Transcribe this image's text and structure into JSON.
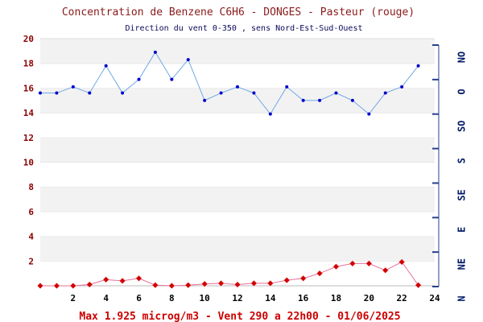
{
  "chart_data": {
    "type": "line",
    "title": "Concentration de Benzene C6H6  -   DONGES - Pasteur (rouge)",
    "subtitle": "Direction du vent 0-350 , sens Nord-Est-Sud-Ouest",
    "footer": "Max 1.925 microg/m3 - Vent 290  a 22h00 - 01/06/2025",
    "xlim": [
      0,
      24
    ],
    "ylim": [
      0,
      20
    ],
    "x_ticks": [
      2,
      4,
      6,
      8,
      10,
      12,
      14,
      16,
      18,
      20,
      22,
      24
    ],
    "y_ticks": [
      2,
      4,
      6,
      8,
      10,
      12,
      14,
      16,
      18,
      20
    ],
    "direction_labels": [
      "NO",
      "O",
      "SO",
      "S",
      "SE",
      "E",
      "NE",
      "N"
    ],
    "grid": "horizontal bands",
    "series": [
      {
        "color": "#6fa8e8",
        "marker_color": "#0000cc",
        "x": [
          0,
          1,
          2,
          3,
          4,
          5,
          6,
          7,
          8,
          9,
          10,
          11,
          12,
          13,
          14,
          15,
          16,
          17,
          18,
          19,
          20,
          21,
          22,
          23
        ],
        "values": [
          15.6,
          15.6,
          16.1,
          15.6,
          17.8,
          15.6,
          16.7,
          18.9,
          16.7,
          18.3,
          15.0,
          15.6,
          16.1,
          15.6,
          13.9,
          16.1,
          15.0,
          15.0,
          15.6,
          15.0,
          13.9,
          15.6,
          16.1,
          17.8
        ]
      },
      {
        "color": "#e86f9a",
        "marker_color": "#cc0000",
        "x": [
          0,
          1,
          2,
          3,
          4,
          5,
          6,
          7,
          8,
          9,
          10,
          11,
          12,
          13,
          14,
          15,
          16,
          17,
          18,
          19,
          20,
          21,
          22,
          23
        ],
        "values": [
          0.0,
          0.0,
          0.0,
          0.1,
          0.5,
          0.4,
          0.6,
          0.05,
          0.0,
          0.05,
          0.15,
          0.2,
          0.1,
          0.2,
          0.2,
          0.45,
          0.6,
          1.0,
          1.55,
          1.8,
          1.8,
          1.25,
          1.925,
          0.05
        ]
      }
    ]
  }
}
